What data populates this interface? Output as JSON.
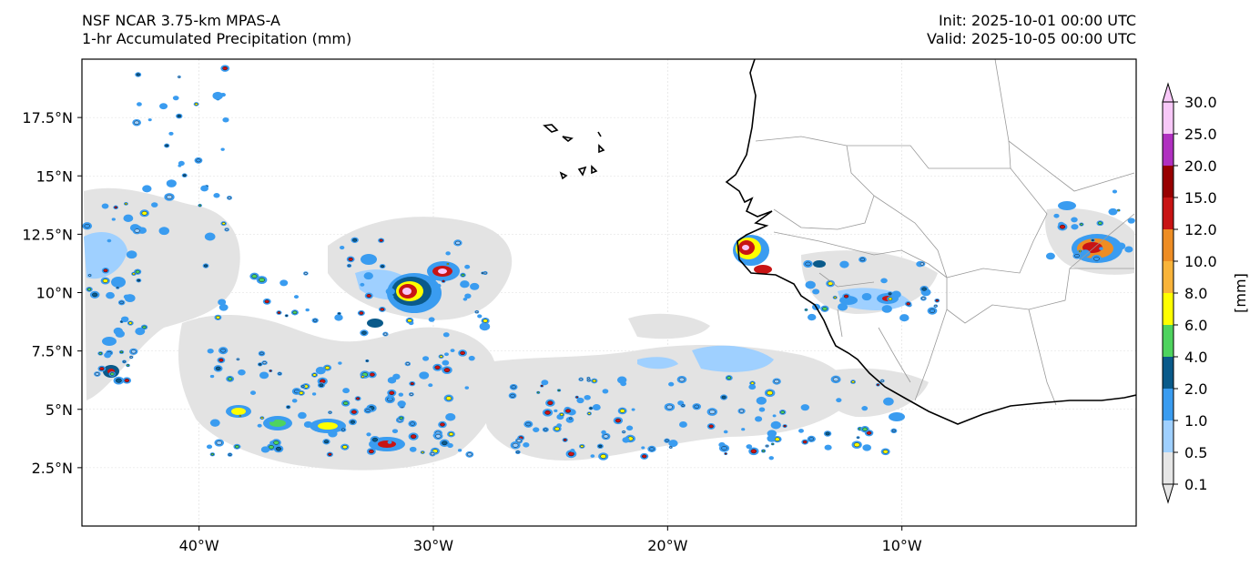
{
  "header": {
    "title_line1": "NSF NCAR 3.75-km MPAS-A",
    "title_line2": "1-hr Accumulated Precipitation (mm)",
    "init": "Init: 2025-10-01 00:00 UTC",
    "valid": "Valid: 2025-10-05 00:00 UTC"
  },
  "map": {
    "lon_range": [
      -45,
      0
    ],
    "lat_range": [
      0,
      20
    ],
    "lon_ticks": [
      -40,
      -30,
      -20,
      -10
    ],
    "lon_tick_labels": [
      "40°W",
      "30°W",
      "20°W",
      "10°W"
    ],
    "lat_ticks": [
      2.5,
      5,
      7.5,
      10,
      12.5,
      15,
      17.5
    ],
    "lat_tick_labels": [
      "2.5°N",
      "5°N",
      "7.5°N",
      "10°N",
      "12.5°N",
      "15°N",
      "17.5°N"
    ],
    "gridlines": true
  },
  "colorbar": {
    "label": "[mm]",
    "levels": [
      "0.1",
      "0.5",
      "1.0",
      "2.0",
      "4.0",
      "6.0",
      "8.0",
      "10.0",
      "12.0",
      "15.0",
      "20.0",
      "25.0",
      "30.0"
    ],
    "colors": [
      "#e6e6e6",
      "#9fd0ff",
      "#3a9cf0",
      "#0a5a8a",
      "#4ed35e",
      "#ffff00",
      "#f9b43a",
      "#ee8d24",
      "#c81414",
      "#980000",
      "#b030c0",
      "#f8c8f8"
    ]
  }
}
